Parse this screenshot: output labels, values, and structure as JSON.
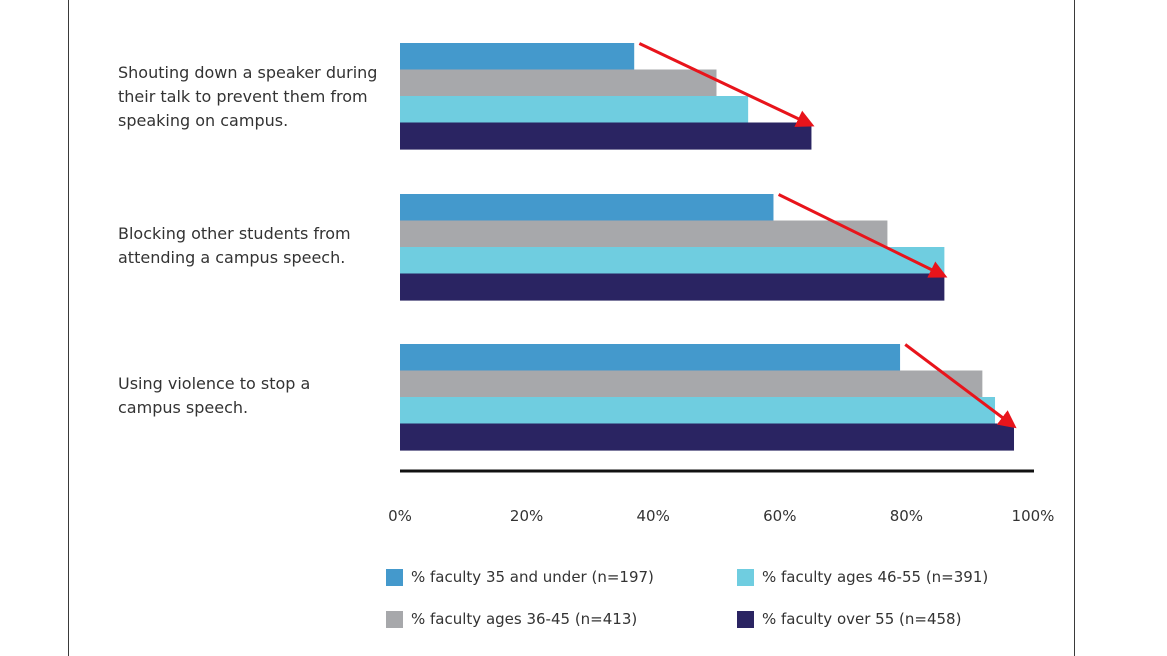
{
  "chart_data": {
    "type": "bar",
    "orientation": "horizontal",
    "categories": [
      [
        "Shouting down a speaker during",
        "their talk to prevent them from",
        "speaking on campus."
      ],
      [
        "Blocking other students from",
        "attending a campus speech."
      ],
      [
        "Using violence to stop a",
        "campus speech."
      ]
    ],
    "series": [
      {
        "name": "% faculty 35 and under (n=197)",
        "color": "#4499cc",
        "values": [
          37,
          59,
          79
        ]
      },
      {
        "name": "% faculty ages 36-45 (n=413)",
        "color": "#a7a8ab",
        "values": [
          50,
          77,
          92
        ]
      },
      {
        "name": "% faculty ages 46-55 (n=391)",
        "color": "#6fcde0",
        "values": [
          55,
          86,
          94
        ]
      },
      {
        "name": "% faculty over 55 (n=458)",
        "color": "#2a2462",
        "values": [
          65,
          86,
          97
        ]
      }
    ],
    "xlim": [
      0,
      100
    ],
    "xticks": [
      "0%",
      "20%",
      "40%",
      "60%",
      "80%",
      "100%"
    ],
    "annotations": [
      {
        "type": "arrow",
        "color": "#e8141b",
        "category": 0,
        "from": 37.5,
        "to": 65
      },
      {
        "type": "arrow",
        "color": "#e8141b",
        "category": 1,
        "from": 59.5,
        "to": 86
      },
      {
        "type": "arrow",
        "color": "#e8141b",
        "category": 2,
        "from": 79.5,
        "to": 97
      }
    ],
    "legend_position": "bottom",
    "legend": [
      "% faculty 35 and under (n=197)",
      "% faculty ages 46-55 (n=391)",
      "% faculty ages 36-45 (n=413)",
      "% faculty over 55 (n=458)"
    ]
  }
}
